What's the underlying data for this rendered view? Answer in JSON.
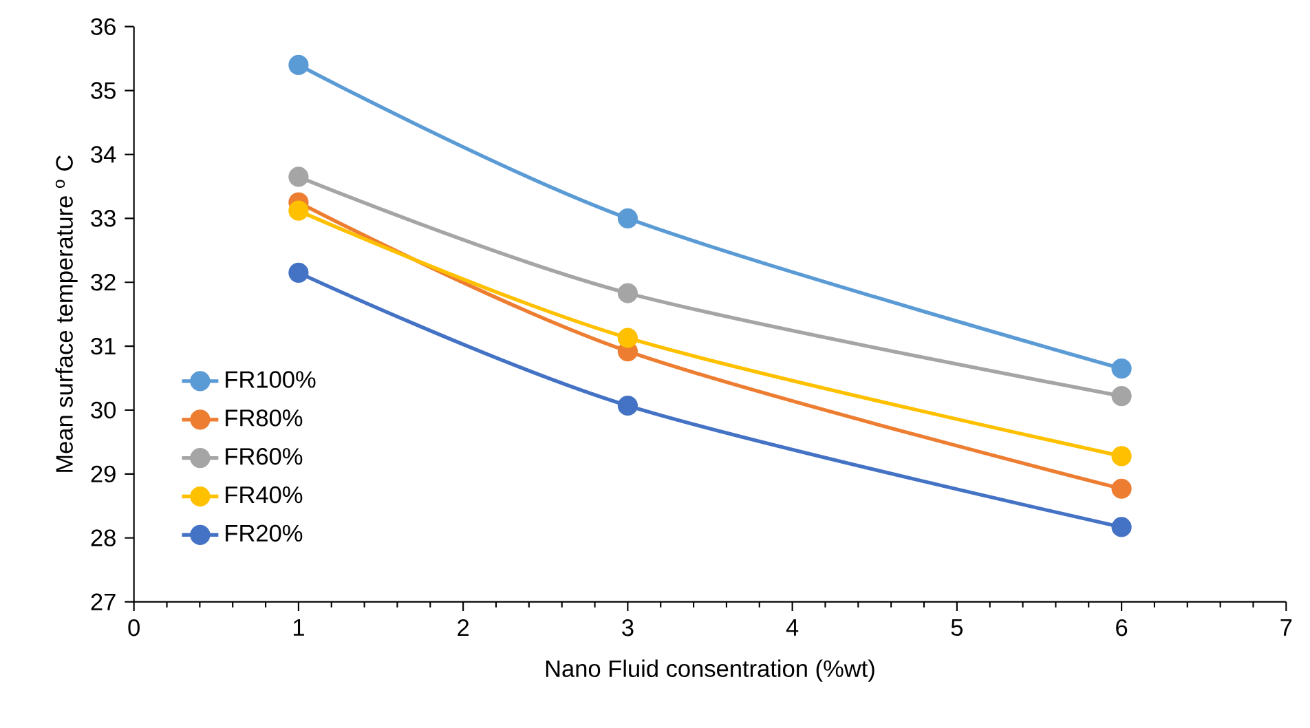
{
  "chart_data": {
    "type": "line",
    "xlabel": "Nano Fluid consentration (%wt)",
    "ylabel": "Mean surface temperature $^{o}$ C",
    "x": [
      1,
      3,
      6
    ],
    "xlim": [
      0,
      7
    ],
    "xticks": [
      0,
      1,
      2,
      3,
      4,
      5,
      6,
      7
    ],
    "ylim": [
      27,
      36
    ],
    "yticks": [
      27,
      28,
      29,
      30,
      31,
      32,
      33,
      34,
      35,
      36
    ],
    "marker": "circle",
    "legend": "left",
    "series": [
      {
        "name": "FR100%",
        "color": "#5b9bd5",
        "values": [
          35.4,
          33.0,
          30.65
        ]
      },
      {
        "name": "FR80%",
        "color": "#ed7d31",
        "values": [
          33.25,
          30.92,
          28.77
        ]
      },
      {
        "name": "FR60%",
        "color": "#a5a5a5",
        "values": [
          33.65,
          31.83,
          30.22
        ]
      },
      {
        "name": "FR40%",
        "color": "#ffc000",
        "values": [
          33.12,
          31.13,
          29.28
        ]
      },
      {
        "name": "FR20%",
        "color": "#4472c4",
        "values": [
          32.15,
          30.07,
          28.17
        ]
      }
    ]
  }
}
